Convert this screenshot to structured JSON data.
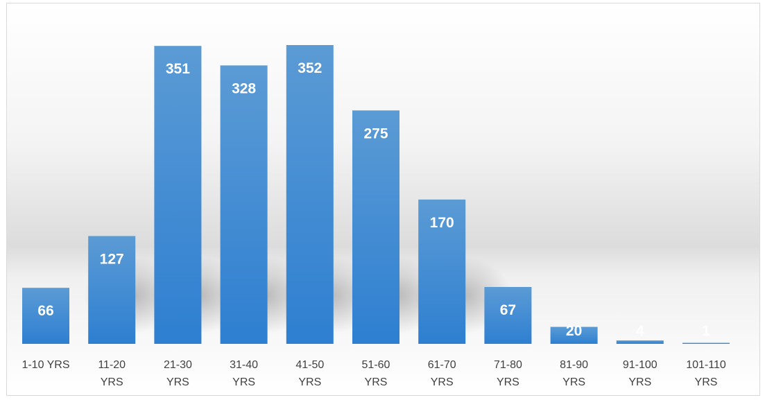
{
  "chart_data": {
    "type": "bar",
    "categories": [
      "1-10 YRS",
      "11-20 YRS",
      "21-30 YRS",
      "31-40 YRS",
      "41-50 YRS",
      "51-60 YRS",
      "61-70 YRS",
      "71-80 YRS",
      "81-90 YRS",
      "91-100 YRS",
      "101-110 YRS"
    ],
    "category_lines": [
      [
        "1-10 YRS"
      ],
      [
        "11-20",
        "YRS"
      ],
      [
        "21-30",
        "YRS"
      ],
      [
        "31-40",
        "YRS"
      ],
      [
        "41-50",
        "YRS"
      ],
      [
        "51-60",
        "YRS"
      ],
      [
        "61-70",
        "YRS"
      ],
      [
        "71-80",
        "YRS"
      ],
      [
        "81-90",
        "YRS"
      ],
      [
        "91-100",
        "YRS"
      ],
      [
        "101-110",
        "YRS"
      ]
    ],
    "values": [
      66,
      127,
      351,
      328,
      352,
      275,
      170,
      67,
      20,
      4,
      1
    ],
    "title": "",
    "xlabel": "",
    "ylabel": "",
    "ylim": [
      0,
      400
    ],
    "grid": false,
    "legend": "none",
    "data_labels": true
  },
  "colors": {
    "bar_top": "#5b9bd5",
    "bar_bottom": "#2e7fd1",
    "data_label": "#ffffff",
    "tick_label": "#404040",
    "chart_border": "#d9d9d9"
  }
}
